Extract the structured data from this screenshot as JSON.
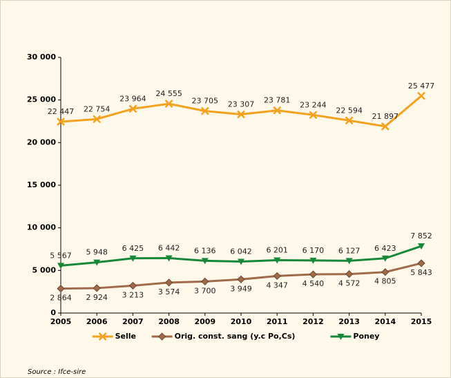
{
  "chart_data": {
    "type": "line",
    "categories": [
      "2005",
      "2006",
      "2007",
      "2008",
      "2009",
      "2010",
      "2011",
      "2012",
      "2013",
      "2014",
      "2015"
    ],
    "series": [
      {
        "name": "Selle",
        "color": "#f4a21e",
        "marker": "x",
        "values": [
          22447,
          22754,
          23964,
          24555,
          23705,
          23307,
          23781,
          23244,
          22594,
          21897,
          25477
        ],
        "value_labels": [
          "22 447",
          "22 754",
          "23 964",
          "24 555",
          "23 705",
          "23 307",
          "23 781",
          "23 244",
          "22 594",
          "21 897",
          "25 477"
        ]
      },
      {
        "name": "Orig. const. sang (y.c Po,Cs)",
        "color": "#a0694a",
        "marker": "diamond",
        "values": [
          2864,
          2924,
          3213,
          3574,
          3700,
          3949,
          4347,
          4540,
          4572,
          4805,
          5843
        ],
        "value_labels": [
          "2 864",
          "2 924",
          "3 213",
          "3 574",
          "3 700",
          "3 949",
          "4 347",
          "4 540",
          "4 572",
          "4 805",
          "5 843"
        ]
      },
      {
        "name": "Poney",
        "color": "#17883a",
        "marker": "triangle-down",
        "values": [
          5567,
          5948,
          6425,
          6442,
          6136,
          6042,
          6201,
          6170,
          6127,
          6423,
          7852
        ],
        "value_labels": [
          "5 567",
          "5 948",
          "6 425",
          "6 442",
          "6 136",
          "6 042",
          "6 201",
          "6 170",
          "6 127",
          "6 423",
          "7 852"
        ]
      }
    ],
    "ylim": [
      0,
      30000
    ],
    "yticks": [
      0,
      {
        "value": 5000,
        "label": "5 000"
      },
      {
        "value": 10000,
        "label": "10 000"
      },
      {
        "value": 15000,
        "label": "15 000"
      },
      {
        "value": 20000,
        "label": "20 000"
      },
      {
        "value": 25000,
        "label": "25 000"
      },
      {
        "value": 30000,
        "label": "30 000"
      }
    ],
    "legend": "bottom",
    "source": "Source : Ifce-sire"
  }
}
